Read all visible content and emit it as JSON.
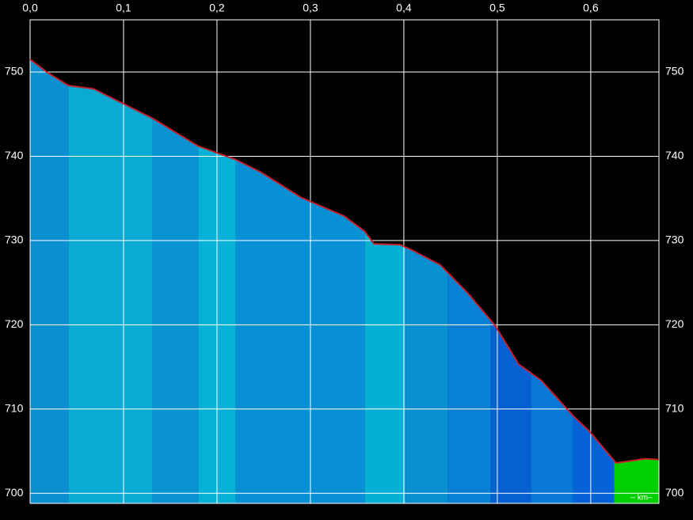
{
  "chart_data": {
    "type": "area",
    "x": [
      0,
      0.019,
      0.041,
      0.068,
      0.095,
      0.131,
      0.18,
      0.22,
      0.247,
      0.29,
      0.336,
      0.358,
      0.368,
      0.396,
      0.408,
      0.439,
      0.468,
      0.497,
      0.523,
      0.547,
      0.581,
      0.599,
      0.627,
      0.646,
      0.658,
      0.673
    ],
    "values": [
      751.5,
      749.9,
      748.4,
      748.0,
      746.5,
      744.5,
      741.2,
      739.6,
      738.1,
      735.1,
      732.9,
      731.1,
      729.6,
      729.5,
      728.9,
      727.1,
      723.8,
      720.0,
      715.3,
      713.4,
      709.2,
      707.3,
      703.6,
      703.9,
      704.1,
      704.0
    ],
    "line_color": "#c8202a",
    "segments": [
      {
        "x0": 0,
        "x1": 0.041,
        "color": "#0a8fd0"
      },
      {
        "x0": 0.041,
        "x1": 0.131,
        "color": "#0aaad2"
      },
      {
        "x0": 0.131,
        "x1": 0.18,
        "color": "#0993d2"
      },
      {
        "x0": 0.18,
        "x1": 0.22,
        "color": "#06b2d6"
      },
      {
        "x0": 0.22,
        "x1": 0.358,
        "color": "#0890d4"
      },
      {
        "x0": 0.358,
        "x1": 0.402,
        "color": "#05b0d4"
      },
      {
        "x0": 0.402,
        "x1": 0.447,
        "color": "#0890d2"
      },
      {
        "x0": 0.447,
        "x1": 0.493,
        "color": "#0780d5"
      },
      {
        "x0": 0.493,
        "x1": 0.536,
        "color": "#0560d2"
      },
      {
        "x0": 0.536,
        "x1": 0.581,
        "color": "#0778d6"
      },
      {
        "x0": 0.581,
        "x1": 0.625,
        "color": "#0562d6"
      },
      {
        "x0": 0.625,
        "x1": 0.673,
        "color": "#00d000"
      }
    ],
    "xlim": [
      0,
      0.673
    ],
    "ylim": [
      698.8,
      756.2
    ],
    "xticks": [
      {
        "value": 0,
        "label": "0,0"
      },
      {
        "value": 0.1,
        "label": "0,1"
      },
      {
        "value": 0.2,
        "label": "0,2"
      },
      {
        "value": 0.3,
        "label": "0,3"
      },
      {
        "value": 0.4,
        "label": "0,4"
      },
      {
        "value": 0.5,
        "label": "0,5"
      },
      {
        "value": 0.6,
        "label": "0,6"
      }
    ],
    "yticks": [
      700,
      710,
      720,
      730,
      740,
      750
    ],
    "x_unit_label": "– km–",
    "grid": true
  }
}
